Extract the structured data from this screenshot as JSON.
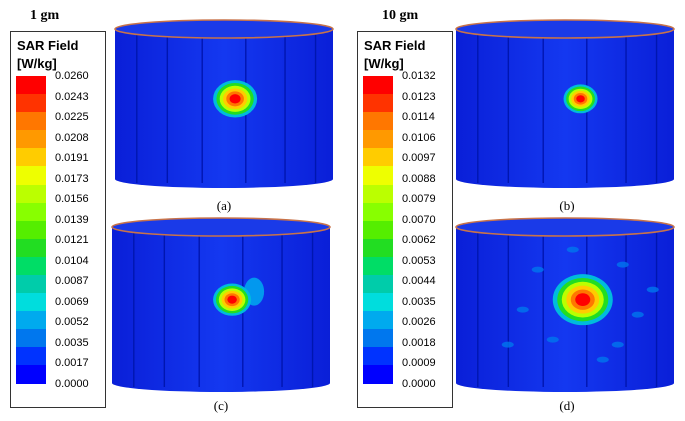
{
  "groups": [
    {
      "label": "1 gm",
      "legend": {
        "title_line1": "SAR Field",
        "title_line2": "[W/kg]",
        "ticks": [
          "0.0260",
          "0.0243",
          "0.0225",
          "0.0208",
          "0.0191",
          "0.0173",
          "0.0156",
          "0.0139",
          "0.0121",
          "0.0104",
          "0.0087",
          "0.0069",
          "0.0052",
          "0.0035",
          "0.0017",
          "0.0000"
        ]
      }
    },
    {
      "label": "10 gm",
      "legend": {
        "title_line1": "SAR Field",
        "title_line2": "[W/kg]",
        "ticks": [
          "0.0132",
          "0.0123",
          "0.0114",
          "0.0106",
          "0.0097",
          "0.0088",
          "0.0079",
          "0.0070",
          "0.0062",
          "0.0053",
          "0.0044",
          "0.0035",
          "0.0026",
          "0.0018",
          "0.0009",
          "0.0000"
        ]
      }
    }
  ],
  "colorscale": [
    "#ff0000",
    "#ff3300",
    "#ff7700",
    "#ff9900",
    "#ffcc00",
    "#eeff00",
    "#bbff00",
    "#88ff00",
    "#55ee00",
    "#22dd22",
    "#00dd66",
    "#00ccaa",
    "#00dddd",
    "#00aaee",
    "#0077ee",
    "#0033ff",
    "#0000ff"
  ],
  "panels": [
    {
      "caption": "(a)",
      "hotspot": "strong-single"
    },
    {
      "caption": "(b)",
      "hotspot": "small-single"
    },
    {
      "caption": "(c)",
      "hotspot": "single-with-tail"
    },
    {
      "caption": "(d)",
      "hotspot": "large-diffuse"
    }
  ]
}
